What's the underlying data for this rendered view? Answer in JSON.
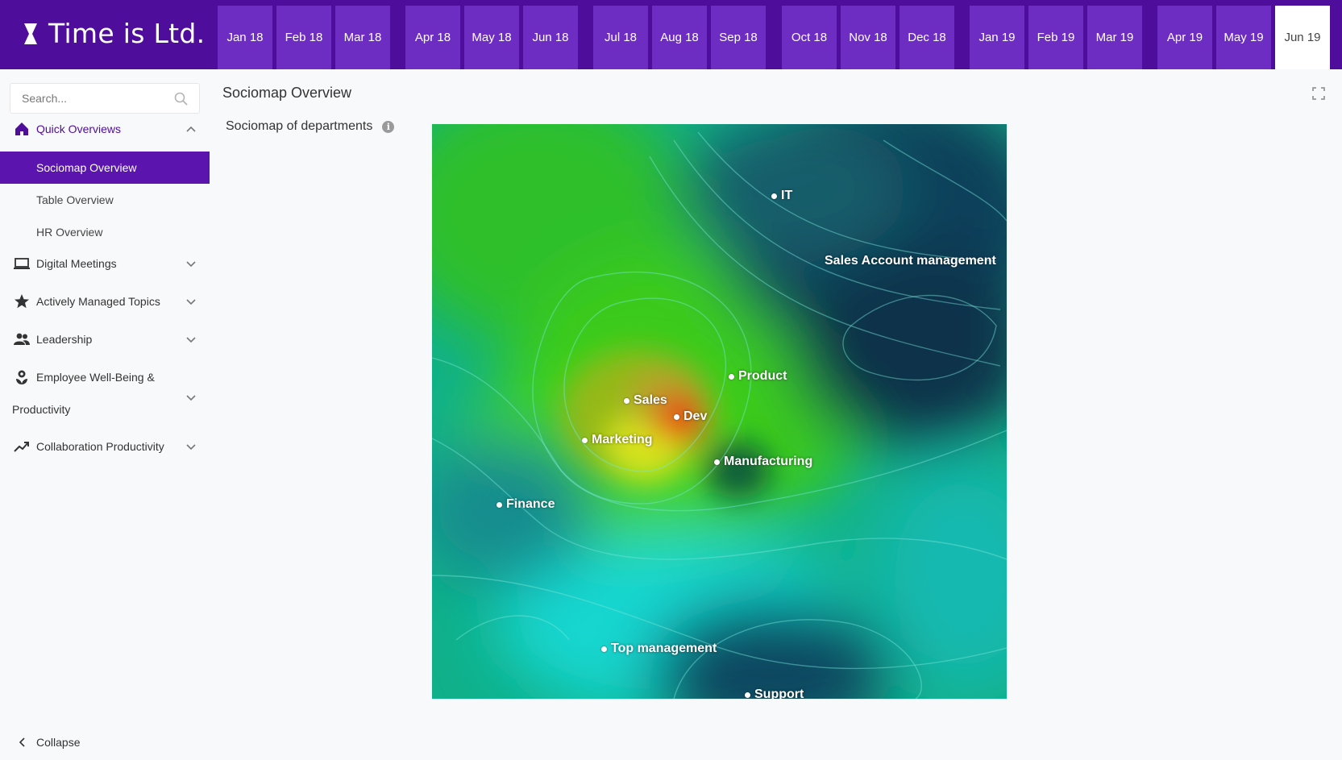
{
  "app": {
    "logo_text": "Time is Ltd."
  },
  "months": [
    "Jan 18",
    "Feb 18",
    "Mar 18",
    "Apr 18",
    "May 18",
    "Jun 18",
    "Jul 18",
    "Aug 18",
    "Sep 18",
    "Oct 18",
    "Nov 18",
    "Dec 18",
    "Jan 19",
    "Feb 19",
    "Mar 19",
    "Apr 19",
    "May 19",
    "Jun 19"
  ],
  "selected_month": "Jun 19",
  "search": {
    "placeholder": "Search..."
  },
  "sidebar": {
    "quick_overviews": "Quick Overviews",
    "sub_items": [
      "Sociomap Overview",
      "Table Overview",
      "HR Overview"
    ],
    "active_sub_item": "Sociomap Overview",
    "digital_meetings": "Digital Meetings",
    "actively_managed_topics": "Actively Managed Topics",
    "leadership": "Leadership",
    "wellbeing_line1": "Employee Well-Being &",
    "wellbeing_line2": "Productivity",
    "collaboration": "Collaboration Productivity",
    "collapse": "Collapse"
  },
  "main": {
    "page_title": "Sociomap Overview",
    "card_title": "Sociomap of departments"
  },
  "sociomap": {
    "departments": [
      "IT",
      "Sales Account management",
      "Product",
      "Sales",
      "Dev",
      "Marketing",
      "Manufacturing",
      "Finance",
      "Top management",
      "Support"
    ]
  },
  "colors": {
    "brand": "#4e0d9a",
    "month_tab": "#6e2dc2",
    "active_nav": "#5b14ae"
  },
  "icons": {
    "logo": "hourglass-icon",
    "search": "search-icon",
    "expand": "fullscreen-icon"
  }
}
